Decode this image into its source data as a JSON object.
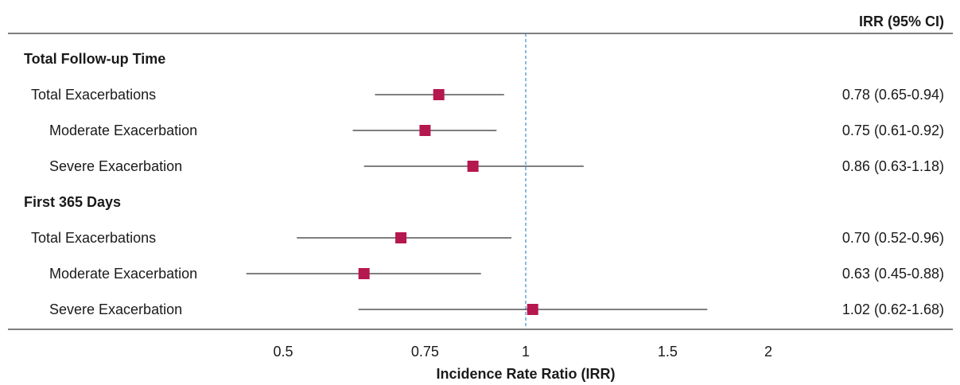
{
  "chart_data": {
    "type": "forest",
    "column_header": "IRR (95% CI)",
    "xlabel": "Incidence Rate Ratio (IRR)",
    "x_scale": "log",
    "xlim": [
      0.41,
      3.1
    ],
    "xticks": [
      0.5,
      0.75,
      1,
      1.5,
      2
    ],
    "xtick_labels": [
      "0.5",
      "0.75",
      "1",
      "1.5",
      "2"
    ],
    "reference_line": 1,
    "marker_color": "#b5174f",
    "reference_color": "#3b8fc4",
    "groups": [
      {
        "title": "Total Follow-up Time",
        "rows": [
          {
            "label": "Total Exacerbations",
            "indent": 1,
            "irr": 0.78,
            "lo": 0.65,
            "hi": 0.94,
            "text": "0.78 (0.65-0.94)"
          },
          {
            "label": "Moderate Exacerbation",
            "indent": 2,
            "irr": 0.75,
            "lo": 0.61,
            "hi": 0.92,
            "text": "0.75 (0.61-0.92)"
          },
          {
            "label": "Severe Exacerbation",
            "indent": 2,
            "irr": 0.86,
            "lo": 0.63,
            "hi": 1.18,
            "text": "0.86 (0.63-1.18)"
          }
        ]
      },
      {
        "title": "First 365 Days",
        "rows": [
          {
            "label": "Total Exacerbations",
            "indent": 1,
            "irr": 0.7,
            "lo": 0.52,
            "hi": 0.96,
            "text": "0.70 (0.52-0.96)"
          },
          {
            "label": "Moderate Exacerbation",
            "indent": 2,
            "irr": 0.63,
            "lo": 0.45,
            "hi": 0.88,
            "text": "0.63 (0.45-0.88)"
          },
          {
            "label": "Severe Exacerbation",
            "indent": 2,
            "irr": 1.02,
            "lo": 0.62,
            "hi": 1.68,
            "text": "1.02 (0.62-1.68)"
          }
        ]
      }
    ]
  }
}
